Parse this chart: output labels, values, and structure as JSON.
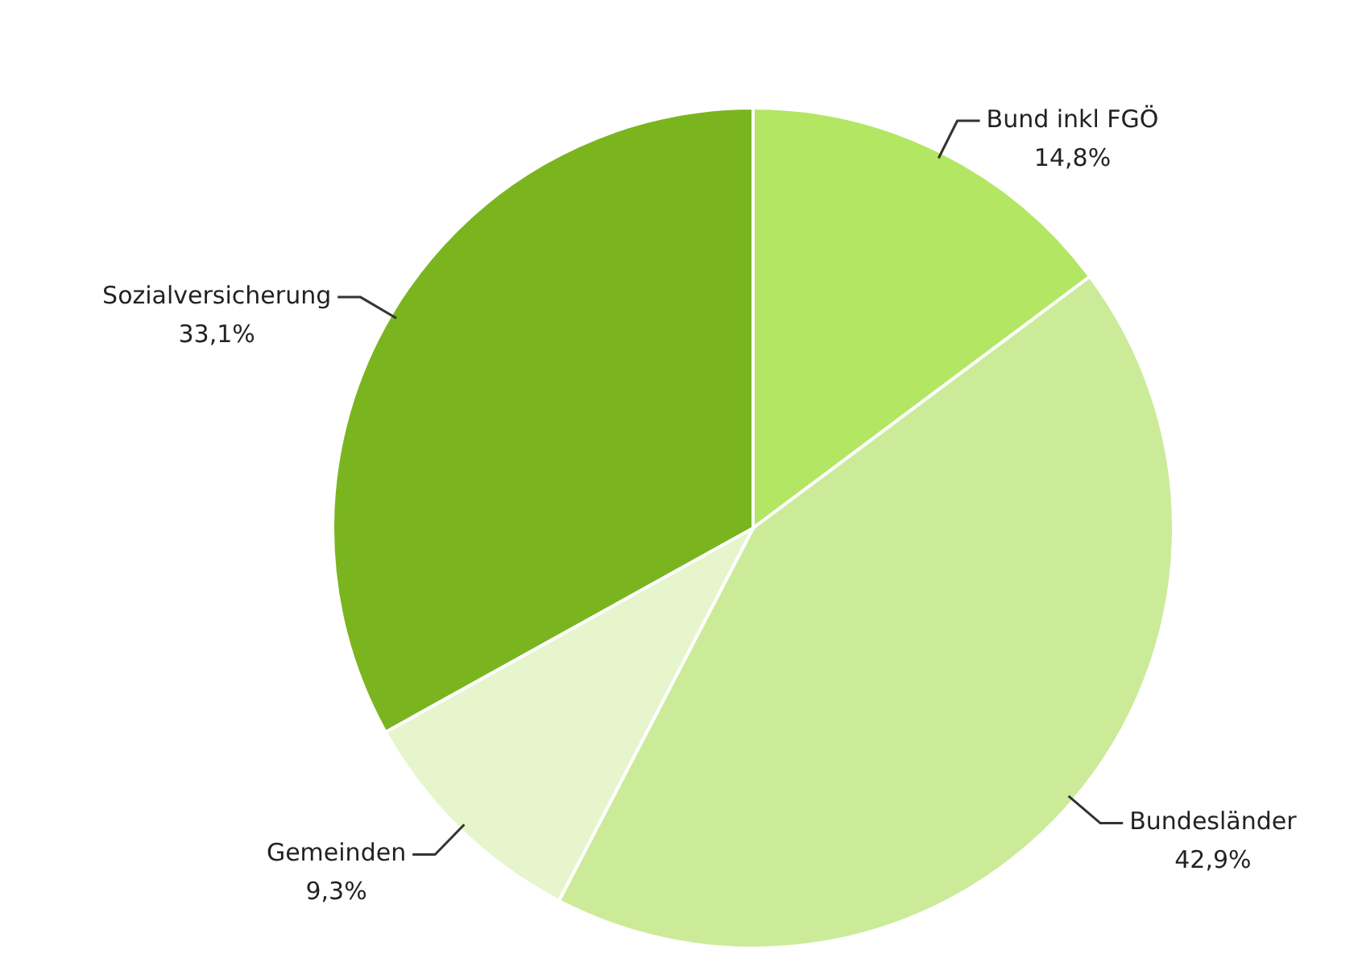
{
  "chart_data": {
    "type": "pie",
    "categories": [
      "Bund inkl FGÖ",
      "Bundesländer",
      "Gemeinden",
      "Sozialversicherung"
    ],
    "values": [
      14.8,
      42.9,
      9.3,
      33.1
    ],
    "value_labels": [
      "14,8%",
      "42,9%",
      "9,3%",
      "33,1%"
    ],
    "colors": [
      "#b3e663",
      "#cbeb99",
      "#e6f5cc",
      "#7ab51f"
    ],
    "legend": false
  }
}
